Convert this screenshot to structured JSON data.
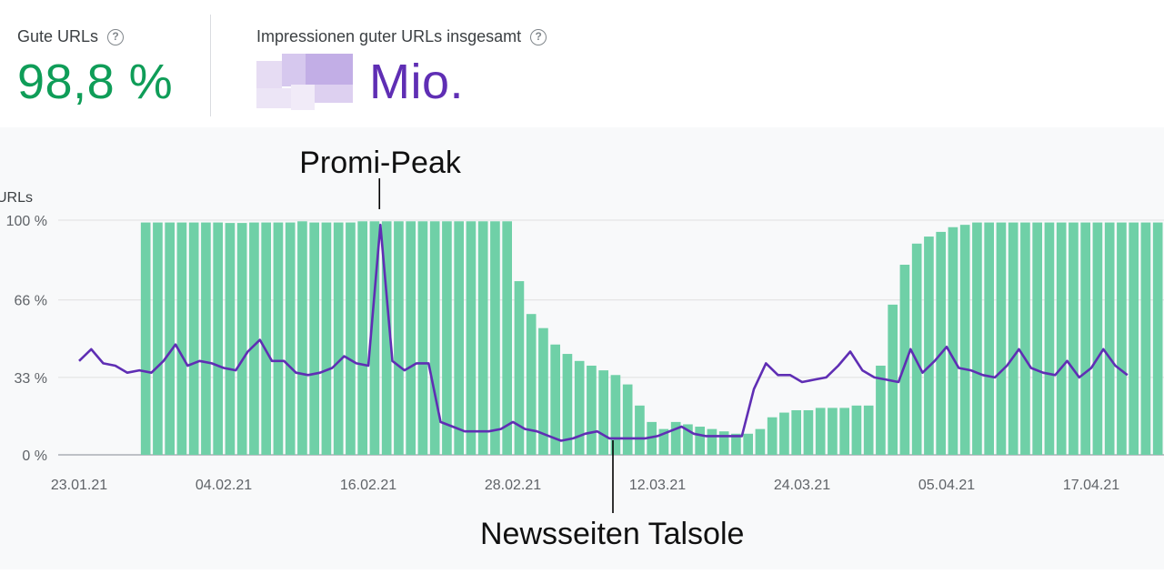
{
  "stats": {
    "good_label": "Gute URLs",
    "good_value": "98,8 %",
    "impr_label": "Impressionen guter URLs insgesamt",
    "impr_unit": "Mio."
  },
  "colors": {
    "good": "#0f9d58",
    "bar": "#6fd0a7",
    "line": "#5f2eb4",
    "grid": "#e0e0e0"
  },
  "chart_data": {
    "type": "bar",
    "ylabel": "URLs",
    "yticks": [
      "100 %",
      "66 %",
      "33 %",
      "0 %"
    ],
    "ytick_values": [
      100,
      66,
      33,
      0
    ],
    "ylim": [
      0,
      100
    ],
    "xtick_labels": [
      "23.01.21",
      "04.02.21",
      "16.02.21",
      "28.02.21",
      "12.03.21",
      "24.03.21",
      "05.04.21",
      "17.04.21"
    ],
    "xtick_days": [
      0,
      12,
      24,
      36,
      48,
      60,
      72,
      84
    ],
    "grid": true,
    "series": [
      {
        "kind": "bar",
        "start_day": 5,
        "values": [
          99,
          99,
          99,
          99,
          99,
          99,
          99,
          98.8,
          98.8,
          99,
          99,
          99,
          99,
          99.5,
          99,
          99,
          99,
          99,
          99.5,
          99.5,
          99.5,
          99.5,
          99.5,
          99.5,
          99.5,
          99.5,
          99.5,
          99.5,
          99.5,
          99.5,
          99.5,
          74,
          60,
          54,
          47,
          43,
          40,
          38,
          36,
          34,
          30,
          21,
          14,
          11,
          14,
          13,
          12,
          11,
          10,
          9,
          9,
          11,
          16,
          18,
          19,
          19,
          20,
          20,
          20,
          21,
          21,
          38,
          64,
          81,
          90,
          93,
          95,
          97,
          98,
          99,
          99,
          99,
          99,
          99,
          99,
          99,
          99,
          99,
          99,
          99,
          99,
          99,
          99,
          99,
          99,
          99,
          99,
          99,
          99,
          99,
          99,
          98.5,
          98.5,
          98.5,
          99,
          99,
          98.5,
          98.5,
          98.5
        ]
      },
      {
        "kind": "line",
        "start_day": 0,
        "values": [
          40,
          45,
          39,
          38,
          35,
          36,
          35,
          40,
          47,
          38,
          40,
          39,
          37,
          36,
          44,
          49,
          40,
          40,
          35,
          34,
          35,
          37,
          42,
          39,
          38,
          98,
          40,
          36,
          39,
          39,
          14,
          12,
          10,
          10,
          10,
          11,
          14,
          11,
          10,
          8,
          6,
          7,
          9,
          10,
          7,
          7,
          7,
          7,
          8,
          10,
          12,
          9,
          8,
          8,
          8,
          8,
          28,
          39,
          34,
          34,
          31,
          32,
          33,
          38,
          44,
          36,
          33,
          32,
          31,
          45,
          35,
          40,
          46,
          37,
          36,
          34,
          33,
          38,
          45,
          37,
          35,
          34,
          40,
          33,
          37,
          45,
          38,
          34
        ]
      }
    ],
    "annotations": [
      {
        "text": "Promi-Peak",
        "day": 25
      },
      {
        "text": "Newsseiten Talsole",
        "day": 44
      }
    ]
  }
}
